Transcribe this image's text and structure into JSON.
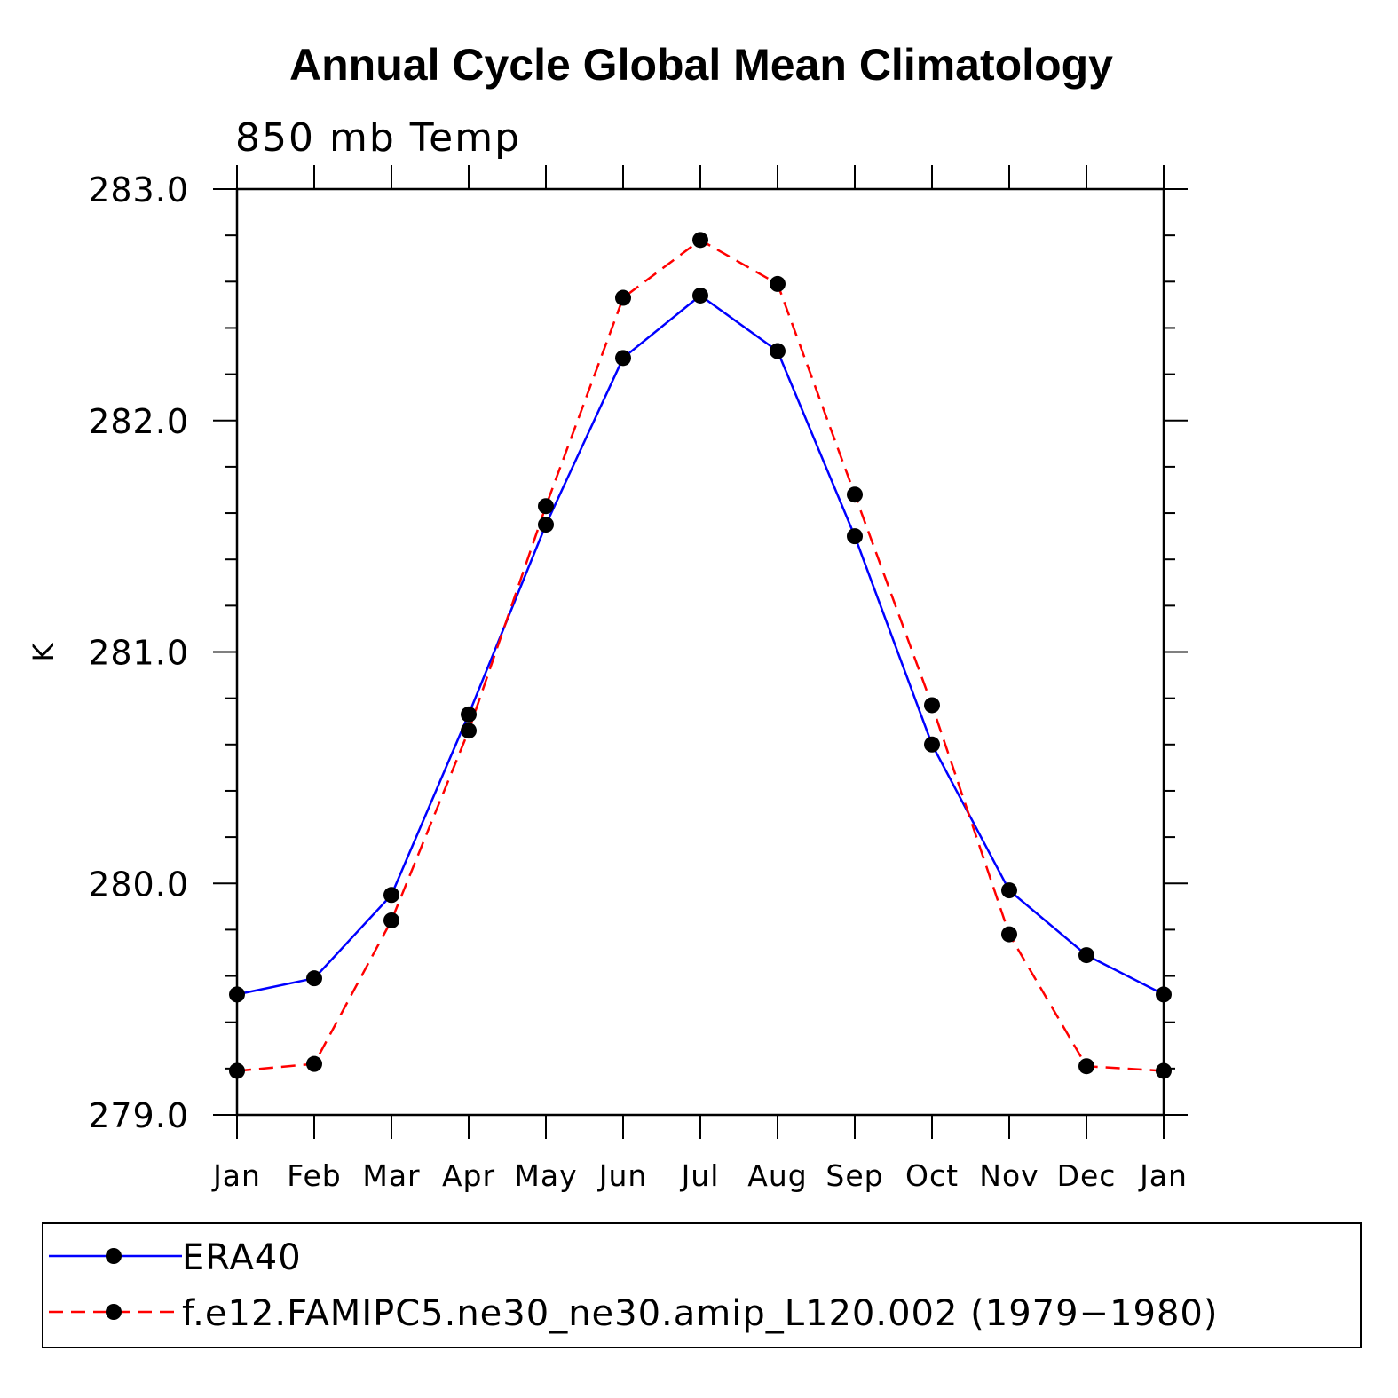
{
  "chart_data": {
    "type": "line",
    "title": "Annual Cycle Global Mean Climatology",
    "subtitle": "850 mb Temp",
    "ylabel": "K",
    "xlabel": "",
    "ylim": [
      279.0,
      283.0
    ],
    "yticks": [
      "279.0",
      "280.0",
      "281.0",
      "282.0",
      "283.0"
    ],
    "categories": [
      "Jan",
      "Feb",
      "Mar",
      "Apr",
      "May",
      "Jun",
      "Jul",
      "Aug",
      "Sep",
      "Oct",
      "Nov",
      "Dec",
      "Jan"
    ],
    "series": [
      {
        "name": "ERA40",
        "color": "#0000ff",
        "style": "solid",
        "values": [
          279.52,
          279.59,
          279.95,
          280.73,
          281.55,
          282.27,
          282.54,
          282.3,
          281.5,
          280.6,
          279.97,
          279.69,
          279.52
        ]
      },
      {
        "name": "f.e12.FAMIPC5.ne30_ne30.amip_L120.002 (1979−1980)",
        "color": "#ff0000",
        "style": "dashed",
        "values": [
          279.19,
          279.22,
          279.84,
          280.66,
          281.63,
          282.53,
          282.78,
          282.59,
          281.68,
          280.77,
          279.78,
          279.21,
          279.19
        ]
      }
    ]
  }
}
